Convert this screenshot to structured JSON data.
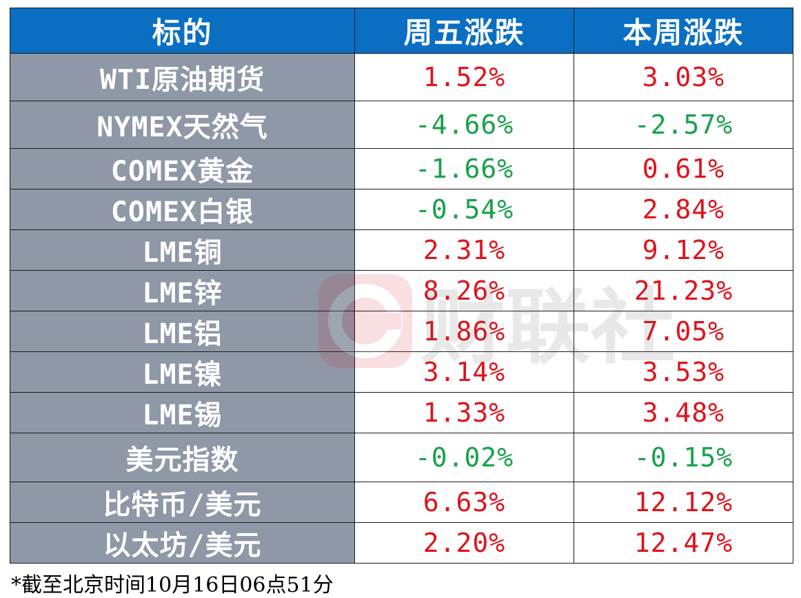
{
  "table": {
    "headers": [
      "标的",
      "周五涨跌",
      "本周涨跌"
    ],
    "rows": [
      {
        "name": "WTI原油期货",
        "fri": "1.52%",
        "week": "3.03%",
        "fri_sign": "pos",
        "week_sign": "pos"
      },
      {
        "name": "NYMEX天然气",
        "fri": "-4.66%",
        "week": "-2.57%",
        "fri_sign": "neg",
        "week_sign": "neg"
      },
      {
        "name": "COMEX黄金",
        "fri": "-1.66%",
        "week": "0.61%",
        "fri_sign": "neg",
        "week_sign": "pos"
      },
      {
        "name": "COMEX白银",
        "fri": "-0.54%",
        "week": "2.84%",
        "fri_sign": "neg",
        "week_sign": "pos"
      },
      {
        "name": "LME铜",
        "fri": "2.31%",
        "week": "9.12%",
        "fri_sign": "pos",
        "week_sign": "pos"
      },
      {
        "name": "LME锌",
        "fri": "8.26%",
        "week": "21.23%",
        "fri_sign": "pos",
        "week_sign": "pos"
      },
      {
        "name": "LME铝",
        "fri": "1.86%",
        "week": "7.05%",
        "fri_sign": "pos",
        "week_sign": "pos"
      },
      {
        "name": "LME镍",
        "fri": "3.14%",
        "week": "3.53%",
        "fri_sign": "pos",
        "week_sign": "pos"
      },
      {
        "name": "LME锡",
        "fri": "1.33%",
        "week": "3.48%",
        "fri_sign": "pos",
        "week_sign": "pos"
      },
      {
        "name": "美元指数",
        "fri": "-0.02%",
        "week": "-0.15%",
        "fri_sign": "neg",
        "week_sign": "neg"
      },
      {
        "name": "比特币/美元",
        "fri": "6.63%",
        "week": "12.12%",
        "fri_sign": "pos",
        "week_sign": "pos"
      },
      {
        "name": "以太坊/美元",
        "fri": "2.20%",
        "week": "12.47%",
        "fri_sign": "pos",
        "week_sign": "pos"
      }
    ]
  },
  "footnote": "*截至北京时间10月16日06点51分",
  "watermark": {
    "text": "财联社",
    "icon": "cls-logo-icon"
  },
  "colors": {
    "header_bg": "#0a6fc2",
    "name_bg": "#8e98a6",
    "positive": "#e0121b",
    "negative": "#18a14a"
  }
}
